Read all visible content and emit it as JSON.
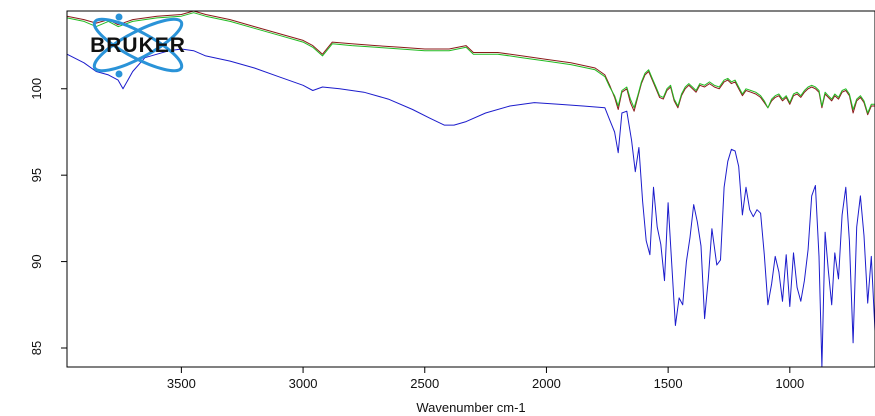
{
  "chart_data": {
    "type": "line",
    "title": "",
    "xlabel": "Wavenumber cm-1",
    "ylabel": "",
    "xlim": [
      3970,
      650
    ],
    "ylim": [
      83.9,
      104.5
    ],
    "x_reversed": true,
    "grid": false,
    "x_ticks": [
      3500,
      3000,
      2500,
      2000,
      1500,
      1000
    ],
    "y_ticks": [
      85,
      90,
      95,
      100
    ],
    "x_tick_labels": [
      "3500",
      "3000",
      "2500",
      "2000",
      "1500",
      "1000"
    ],
    "y_tick_labels": [
      "85",
      "90",
      "95",
      "100"
    ],
    "logo": {
      "text": "BRUKER",
      "icon": "bruker-atom-logo"
    },
    "series": [
      {
        "color": "#1c1ccc",
        "points": [
          [
            3970,
            102.0
          ],
          [
            3900,
            101.5
          ],
          [
            3850,
            101.0
          ],
          [
            3800,
            100.8
          ],
          [
            3760,
            100.5
          ],
          [
            3740,
            100.0
          ],
          [
            3700,
            101.0
          ],
          [
            3650,
            101.8
          ],
          [
            3600,
            102.0
          ],
          [
            3550,
            102.2
          ],
          [
            3500,
            102.3
          ],
          [
            3450,
            102.2
          ],
          [
            3400,
            101.9
          ],
          [
            3300,
            101.6
          ],
          [
            3200,
            101.2
          ],
          [
            3100,
            100.7
          ],
          [
            3000,
            100.2
          ],
          [
            2960,
            99.9
          ],
          [
            2920,
            100.1
          ],
          [
            2850,
            100.0
          ],
          [
            2750,
            99.8
          ],
          [
            2650,
            99.4
          ],
          [
            2550,
            98.8
          ],
          [
            2480,
            98.3
          ],
          [
            2420,
            97.9
          ],
          [
            2380,
            97.9
          ],
          [
            2330,
            98.1
          ],
          [
            2250,
            98.6
          ],
          [
            2150,
            99.0
          ],
          [
            2050,
            99.2
          ],
          [
            1950,
            99.1
          ],
          [
            1850,
            99.0
          ],
          [
            1760,
            98.9
          ],
          [
            1740,
            98.2
          ],
          [
            1720,
            97.5
          ],
          [
            1705,
            96.3
          ],
          [
            1690,
            98.6
          ],
          [
            1670,
            98.7
          ],
          [
            1650,
            97.0
          ],
          [
            1635,
            95.2
          ],
          [
            1620,
            96.6
          ],
          [
            1605,
            93.5
          ],
          [
            1590,
            91.2
          ],
          [
            1575,
            90.4
          ],
          [
            1560,
            94.3
          ],
          [
            1545,
            92.0
          ],
          [
            1530,
            91.0
          ],
          [
            1515,
            88.9
          ],
          [
            1500,
            93.4
          ],
          [
            1485,
            89.8
          ],
          [
            1470,
            86.3
          ],
          [
            1455,
            87.9
          ],
          [
            1440,
            87.5
          ],
          [
            1425,
            90.0
          ],
          [
            1410,
            91.4
          ],
          [
            1395,
            93.3
          ],
          [
            1380,
            92.3
          ],
          [
            1365,
            90.9
          ],
          [
            1350,
            86.7
          ],
          [
            1335,
            89.0
          ],
          [
            1320,
            91.9
          ],
          [
            1300,
            89.8
          ],
          [
            1285,
            90.1
          ],
          [
            1270,
            94.3
          ],
          [
            1255,
            95.8
          ],
          [
            1240,
            96.5
          ],
          [
            1225,
            96.4
          ],
          [
            1210,
            95.5
          ],
          [
            1195,
            92.7
          ],
          [
            1180,
            94.3
          ],
          [
            1165,
            93.0
          ],
          [
            1150,
            92.6
          ],
          [
            1135,
            93.0
          ],
          [
            1120,
            92.8
          ],
          [
            1105,
            90.4
          ],
          [
            1090,
            87.5
          ],
          [
            1075,
            88.7
          ],
          [
            1060,
            90.3
          ],
          [
            1045,
            89.4
          ],
          [
            1030,
            87.7
          ],
          [
            1015,
            90.4
          ],
          [
            1000,
            87.4
          ],
          [
            985,
            90.5
          ],
          [
            970,
            88.5
          ],
          [
            955,
            87.7
          ],
          [
            940,
            88.9
          ],
          [
            925,
            90.7
          ],
          [
            910,
            93.8
          ],
          [
            895,
            94.4
          ],
          [
            880,
            90.3
          ],
          [
            868,
            83.9
          ],
          [
            855,
            91.7
          ],
          [
            842,
            89.5
          ],
          [
            828,
            87.5
          ],
          [
            815,
            90.5
          ],
          [
            800,
            89.0
          ],
          [
            785,
            92.7
          ],
          [
            770,
            94.3
          ],
          [
            755,
            91.2
          ],
          [
            740,
            85.3
          ],
          [
            725,
            92.0
          ],
          [
            710,
            93.8
          ],
          [
            695,
            91.5
          ],
          [
            680,
            87.6
          ],
          [
            665,
            90.3
          ],
          [
            650,
            86.0
          ]
        ]
      },
      {
        "color": "#8b1a1a",
        "points": [
          [
            3970,
            104.2
          ],
          [
            3900,
            104.0
          ],
          [
            3850,
            103.8
          ],
          [
            3800,
            104.0
          ],
          [
            3760,
            103.7
          ],
          [
            3700,
            104.0
          ],
          [
            3600,
            104.2
          ],
          [
            3500,
            104.3
          ],
          [
            3450,
            104.5
          ],
          [
            3400,
            104.3
          ],
          [
            3300,
            104.0
          ],
          [
            3200,
            103.6
          ],
          [
            3100,
            103.2
          ],
          [
            3000,
            102.8
          ],
          [
            2960,
            102.5
          ],
          [
            2920,
            102.0
          ],
          [
            2880,
            102.7
          ],
          [
            2800,
            102.6
          ],
          [
            2700,
            102.5
          ],
          [
            2600,
            102.4
          ],
          [
            2500,
            102.3
          ],
          [
            2400,
            102.3
          ],
          [
            2330,
            102.5
          ],
          [
            2300,
            102.1
          ],
          [
            2200,
            102.1
          ],
          [
            2100,
            101.9
          ],
          [
            2000,
            101.7
          ],
          [
            1900,
            101.5
          ],
          [
            1800,
            101.2
          ],
          [
            1760,
            100.8
          ],
          [
            1740,
            100.2
          ],
          [
            1720,
            99.5
          ],
          [
            1705,
            98.8
          ],
          [
            1690,
            99.8
          ],
          [
            1670,
            100.0
          ],
          [
            1655,
            99.2
          ],
          [
            1640,
            98.7
          ],
          [
            1625,
            99.5
          ],
          [
            1610,
            100.3
          ],
          [
            1595,
            100.8
          ],
          [
            1580,
            101.0
          ],
          [
            1565,
            100.5
          ],
          [
            1550,
            100.0
          ],
          [
            1535,
            99.5
          ],
          [
            1520,
            99.4
          ],
          [
            1505,
            99.9
          ],
          [
            1490,
            100.1
          ],
          [
            1475,
            99.3
          ],
          [
            1460,
            98.9
          ],
          [
            1445,
            99.6
          ],
          [
            1430,
            100.0
          ],
          [
            1415,
            100.2
          ],
          [
            1400,
            100.0
          ],
          [
            1385,
            99.8
          ],
          [
            1370,
            100.2
          ],
          [
            1350,
            100.1
          ],
          [
            1330,
            100.3
          ],
          [
            1310,
            100.1
          ],
          [
            1290,
            100.0
          ],
          [
            1270,
            100.4
          ],
          [
            1255,
            100.5
          ],
          [
            1240,
            100.3
          ],
          [
            1225,
            100.4
          ],
          [
            1210,
            100.0
          ],
          [
            1195,
            99.6
          ],
          [
            1180,
            99.9
          ],
          [
            1160,
            99.8
          ],
          [
            1140,
            99.7
          ],
          [
            1120,
            99.5
          ],
          [
            1105,
            99.2
          ],
          [
            1090,
            98.9
          ],
          [
            1075,
            99.3
          ],
          [
            1060,
            99.5
          ],
          [
            1045,
            99.6
          ],
          [
            1030,
            99.3
          ],
          [
            1015,
            99.5
          ],
          [
            1000,
            99.1
          ],
          [
            985,
            99.6
          ],
          [
            970,
            99.7
          ],
          [
            955,
            99.5
          ],
          [
            940,
            99.8
          ],
          [
            925,
            100.0
          ],
          [
            910,
            100.1
          ],
          [
            895,
            100.0
          ],
          [
            880,
            99.8
          ],
          [
            868,
            98.9
          ],
          [
            855,
            99.7
          ],
          [
            842,
            99.5
          ],
          [
            828,
            99.3
          ],
          [
            815,
            99.6
          ],
          [
            800,
            99.4
          ],
          [
            785,
            99.8
          ],
          [
            770,
            99.9
          ],
          [
            755,
            99.6
          ],
          [
            740,
            98.6
          ],
          [
            725,
            99.3
          ],
          [
            710,
            99.5
          ],
          [
            695,
            99.2
          ],
          [
            680,
            98.5
          ],
          [
            665,
            99.0
          ],
          [
            650,
            99.0
          ]
        ]
      },
      {
        "color": "#22bb22",
        "points": [
          [
            3970,
            104.1
          ],
          [
            3900,
            103.9
          ],
          [
            3850,
            103.6
          ],
          [
            3800,
            103.9
          ],
          [
            3760,
            103.6
          ],
          [
            3700,
            103.9
          ],
          [
            3600,
            104.1
          ],
          [
            3500,
            104.2
          ],
          [
            3450,
            104.4
          ],
          [
            3400,
            104.2
          ],
          [
            3300,
            103.9
          ],
          [
            3200,
            103.5
          ],
          [
            3100,
            103.1
          ],
          [
            3000,
            102.7
          ],
          [
            2960,
            102.4
          ],
          [
            2920,
            101.9
          ],
          [
            2880,
            102.6
          ],
          [
            2800,
            102.5
          ],
          [
            2700,
            102.4
          ],
          [
            2600,
            102.3
          ],
          [
            2500,
            102.2
          ],
          [
            2400,
            102.2
          ],
          [
            2330,
            102.4
          ],
          [
            2300,
            102.0
          ],
          [
            2200,
            102.0
          ],
          [
            2100,
            101.8
          ],
          [
            2000,
            101.6
          ],
          [
            1900,
            101.4
          ],
          [
            1800,
            101.1
          ],
          [
            1760,
            100.7
          ],
          [
            1740,
            100.1
          ],
          [
            1720,
            99.6
          ],
          [
            1705,
            99.0
          ],
          [
            1690,
            99.9
          ],
          [
            1670,
            100.1
          ],
          [
            1655,
            99.4
          ],
          [
            1640,
            98.9
          ],
          [
            1625,
            99.6
          ],
          [
            1610,
            100.4
          ],
          [
            1595,
            100.9
          ],
          [
            1580,
            101.1
          ],
          [
            1565,
            100.6
          ],
          [
            1550,
            100.1
          ],
          [
            1535,
            99.6
          ],
          [
            1520,
            99.5
          ],
          [
            1505,
            100.0
          ],
          [
            1490,
            100.2
          ],
          [
            1475,
            99.4
          ],
          [
            1460,
            99.0
          ],
          [
            1445,
            99.7
          ],
          [
            1430,
            100.1
          ],
          [
            1415,
            100.3
          ],
          [
            1400,
            100.1
          ],
          [
            1385,
            99.9
          ],
          [
            1370,
            100.3
          ],
          [
            1350,
            100.2
          ],
          [
            1330,
            100.4
          ],
          [
            1310,
            100.2
          ],
          [
            1290,
            100.1
          ],
          [
            1270,
            100.5
          ],
          [
            1255,
            100.6
          ],
          [
            1240,
            100.4
          ],
          [
            1225,
            100.5
          ],
          [
            1210,
            100.1
          ],
          [
            1195,
            99.7
          ],
          [
            1180,
            100.0
          ],
          [
            1160,
            99.9
          ],
          [
            1140,
            99.8
          ],
          [
            1120,
            99.6
          ],
          [
            1105,
            99.3
          ],
          [
            1090,
            98.9
          ],
          [
            1075,
            99.4
          ],
          [
            1060,
            99.6
          ],
          [
            1045,
            99.7
          ],
          [
            1030,
            99.4
          ],
          [
            1015,
            99.6
          ],
          [
            1000,
            99.2
          ],
          [
            985,
            99.7
          ],
          [
            970,
            99.8
          ],
          [
            955,
            99.6
          ],
          [
            940,
            99.9
          ],
          [
            925,
            100.1
          ],
          [
            910,
            100.2
          ],
          [
            895,
            100.1
          ],
          [
            880,
            99.9
          ],
          [
            868,
            99.0
          ],
          [
            855,
            99.8
          ],
          [
            842,
            99.6
          ],
          [
            828,
            99.4
          ],
          [
            815,
            99.7
          ],
          [
            800,
            99.5
          ],
          [
            785,
            99.9
          ],
          [
            770,
            100.0
          ],
          [
            755,
            99.7
          ],
          [
            740,
            98.8
          ],
          [
            725,
            99.4
          ],
          [
            710,
            99.6
          ],
          [
            695,
            99.3
          ],
          [
            680,
            98.6
          ],
          [
            665,
            99.1
          ],
          [
            650,
            99.1
          ]
        ]
      }
    ]
  }
}
